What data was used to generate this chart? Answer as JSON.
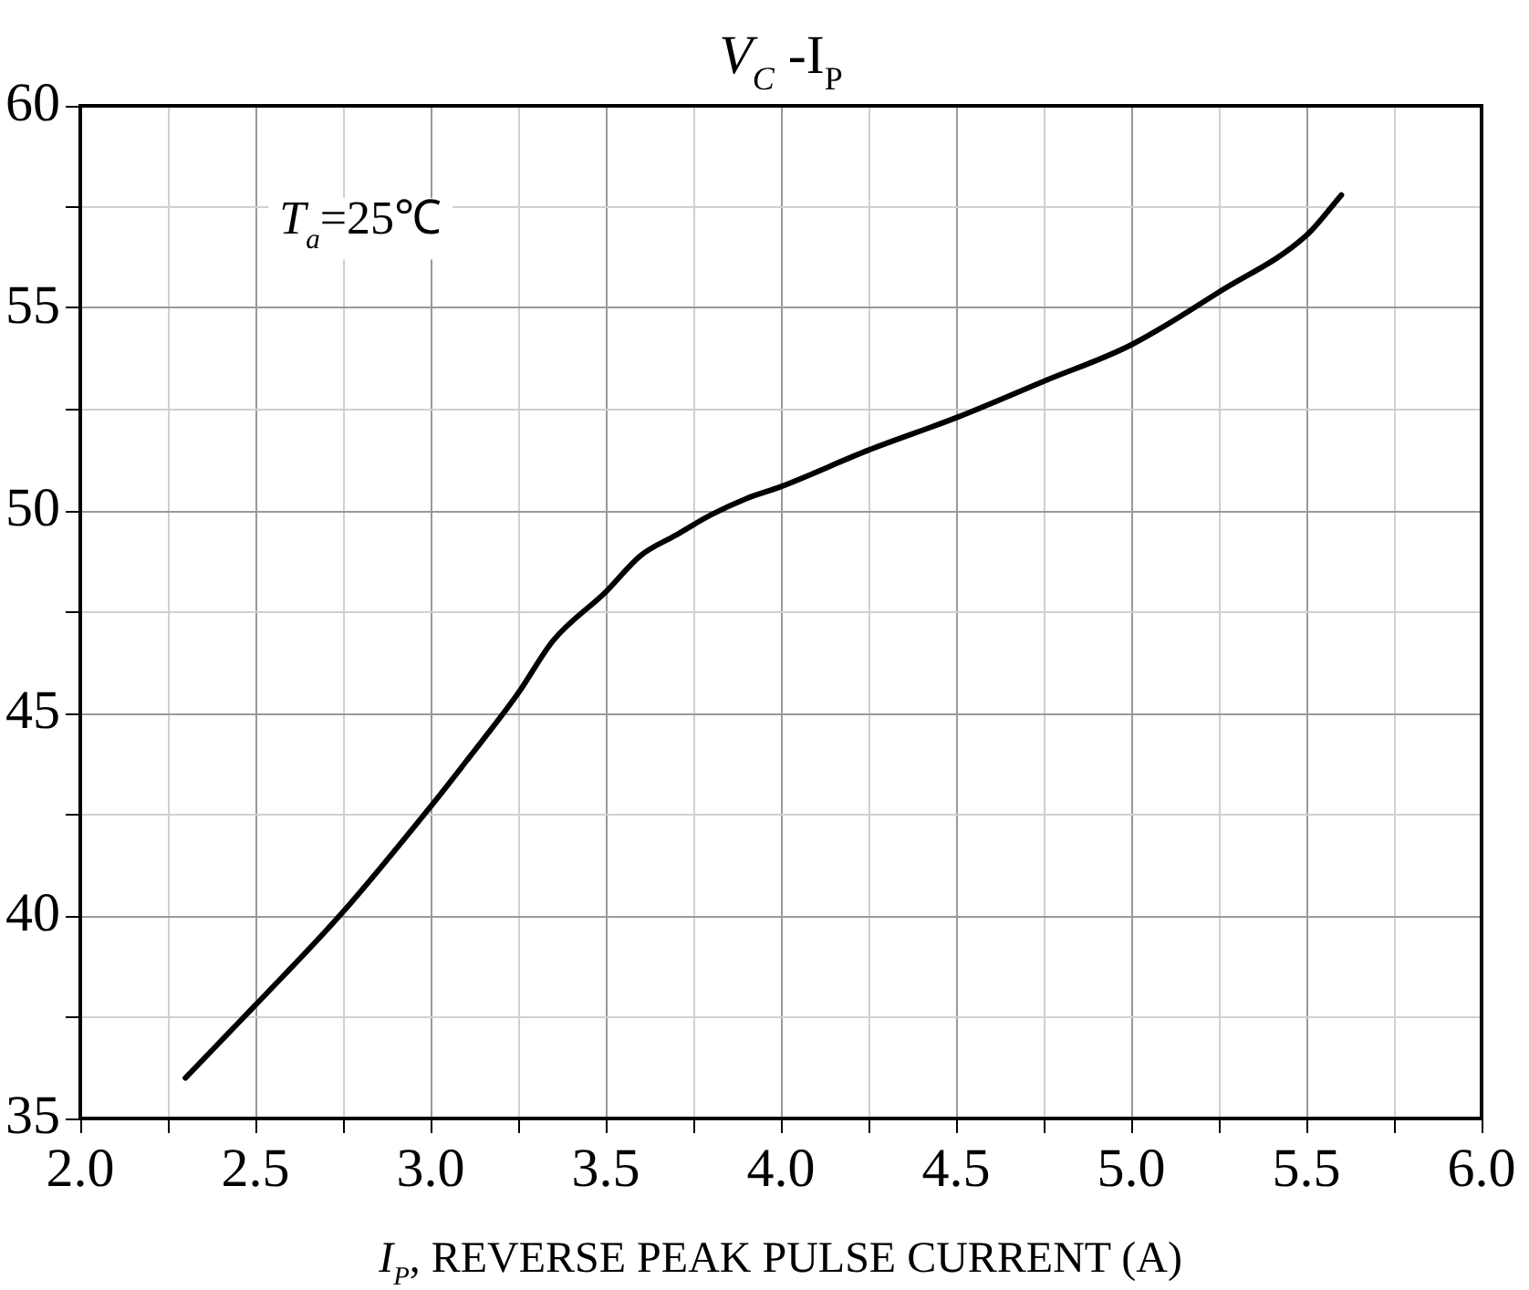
{
  "chart_data": {
    "type": "line",
    "title": "V$_{C}$ -I$_{P}$",
    "xlabel": "I$_{P}$, REVERSE PEAK PULSE CURRENT (A)",
    "annotations": [
      "T$_{a}$=25℃"
    ],
    "series": [
      {
        "color": "#000000",
        "x": [
          2.3,
          2.5,
          2.75,
          3.0,
          3.1,
          3.25,
          3.35,
          3.5,
          3.6,
          3.7,
          3.8,
          3.9,
          4.0,
          4.25,
          4.5,
          4.75,
          5.0,
          5.25,
          5.5,
          5.6
        ],
        "values": [
          36.0,
          37.8,
          40.1,
          42.7,
          43.8,
          45.5,
          46.8,
          48.0,
          48.9,
          49.4,
          49.9,
          50.3,
          50.6,
          51.5,
          52.3,
          53.2,
          54.1,
          55.4,
          56.8,
          57.8
        ]
      }
    ],
    "xlim": [
      2.0,
      6.0
    ],
    "xticks": [
      {
        "value": 2.0,
        "label": "2.0"
      },
      {
        "value": 2.25,
        "label": null
      },
      {
        "value": 2.5,
        "label": "2.5"
      },
      {
        "value": 2.75,
        "label": null
      },
      {
        "value": 3.0,
        "label": "3.0"
      },
      {
        "value": 3.25,
        "label": null
      },
      {
        "value": 3.5,
        "label": "3.5"
      },
      {
        "value": 3.75,
        "label": null
      },
      {
        "value": 4.0,
        "label": "4.0"
      },
      {
        "value": 4.25,
        "label": null
      },
      {
        "value": 4.5,
        "label": "4.5"
      },
      {
        "value": 4.75,
        "label": null
      },
      {
        "value": 5.0,
        "label": "5.0"
      },
      {
        "value": 5.25,
        "label": null
      },
      {
        "value": 5.5,
        "label": "5.5"
      },
      {
        "value": 5.75,
        "label": null
      },
      {
        "value": 6.0,
        "label": "6.0"
      }
    ],
    "ylim": [
      35,
      60
    ],
    "yticks": [
      35,
      {
        "value": 37.5,
        "label": null
      },
      40,
      {
        "value": 42.5,
        "label": null
      },
      45,
      {
        "value": 47.5,
        "label": null
      },
      50,
      {
        "value": 52.5,
        "label": null
      },
      55,
      {
        "value": 57.5,
        "label": null
      },
      60
    ],
    "grid": true,
    "legend": false,
    "marker": "none",
    "line_style": "solid"
  }
}
